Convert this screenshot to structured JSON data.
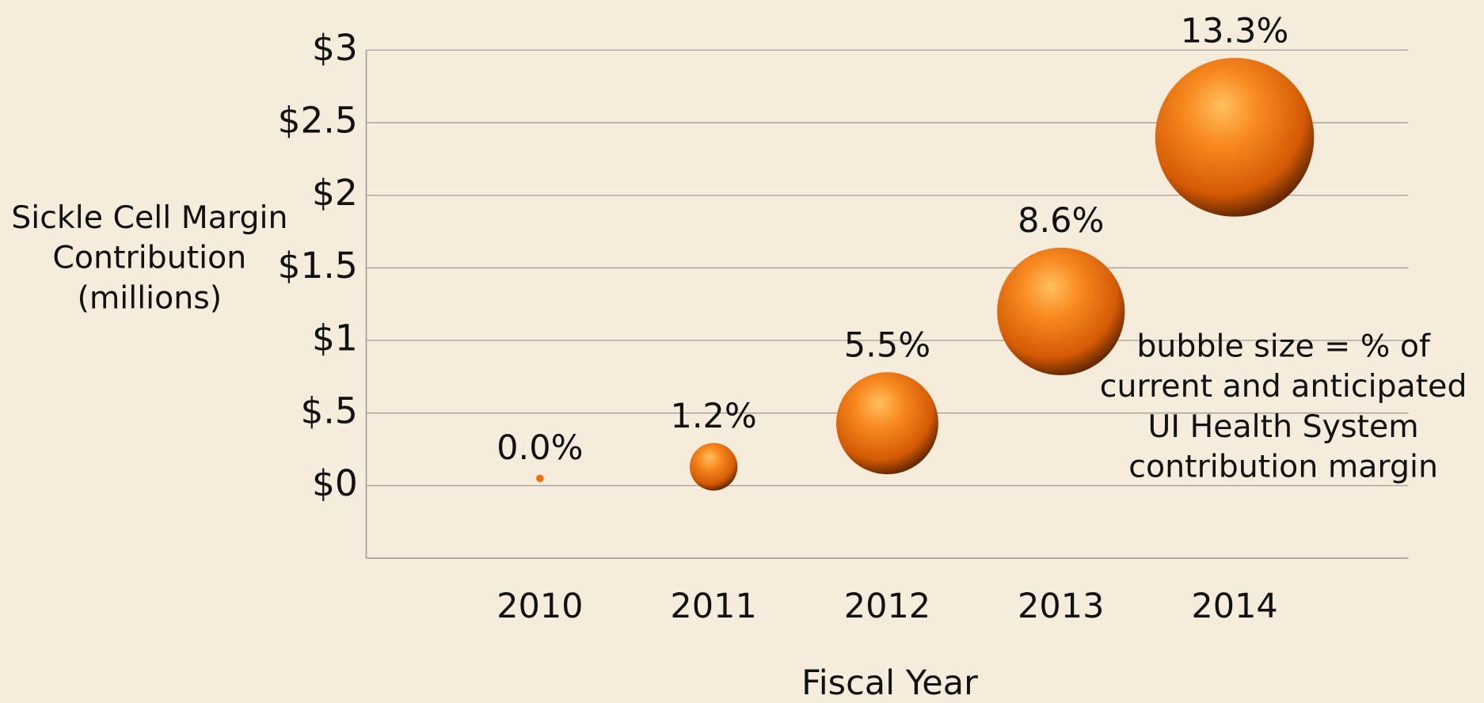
{
  "chart_data": {
    "type": "bubble",
    "y_label": [
      "Sickle Cell Margin",
      "Contribution",
      "(millions)"
    ],
    "x_label": "Fiscal Year",
    "annotation": [
      "bubble size = % of",
      "current and anticipated",
      "UI Health System",
      "contribution margin"
    ],
    "xlim": [
      2009,
      2015
    ],
    "xticks": [
      2010,
      2011,
      2012,
      2013,
      2014
    ],
    "ylim": [
      -0.5,
      3
    ],
    "yticks": [
      {
        "value": 0,
        "label": "$0"
      },
      {
        "value": 0.5,
        "label": "$.5"
      },
      {
        "value": 1,
        "label": "$1"
      },
      {
        "value": 1.5,
        "label": "$1.5"
      },
      {
        "value": 2,
        "label": "$2"
      },
      {
        "value": 2.5,
        "label": "$2.5"
      },
      {
        "value": 3,
        "label": "$3"
      }
    ],
    "grid": true,
    "series": [
      {
        "color": "#f07010",
        "x": [
          2010,
          2011,
          2012,
          2013,
          2014
        ],
        "values": [
          0.05,
          0.13,
          0.43,
          1.2,
          2.4
        ],
        "sizes": [
          0,
          1.2,
          5.5,
          8.6,
          13.3
        ],
        "size_labels": [
          "0.0%",
          "1.2%",
          "5.5%",
          "8.6%",
          "13.3%"
        ]
      }
    ]
  }
}
